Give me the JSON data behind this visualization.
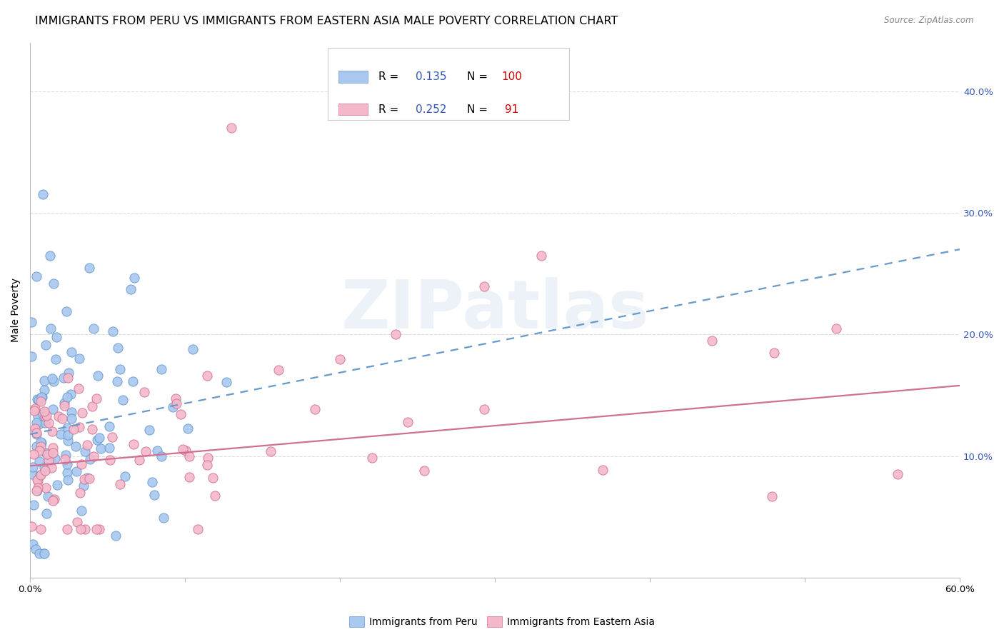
{
  "title": "IMMIGRANTS FROM PERU VS IMMIGRANTS FROM EASTERN ASIA MALE POVERTY CORRELATION CHART",
  "source": "Source: ZipAtlas.com",
  "ylabel": "Male Poverty",
  "xlim": [
    0.0,
    0.6
  ],
  "ylim": [
    0.0,
    0.44
  ],
  "xtick_positions": [
    0.0,
    0.1,
    0.2,
    0.3,
    0.4,
    0.5,
    0.6
  ],
  "xtick_labels": [
    "0.0%",
    "",
    "",
    "",
    "",
    "",
    "60.0%"
  ],
  "ytick_positions": [
    0.0,
    0.1,
    0.2,
    0.3,
    0.4
  ],
  "ytick_labels_right": [
    "",
    "10.0%",
    "20.0%",
    "30.0%",
    "40.0%"
  ],
  "series": [
    {
      "name": "Immigrants from Peru",
      "color": "#a8c8f0",
      "edge_color": "#6699cc",
      "R": 0.135,
      "N": 100,
      "line_x": [
        0.0,
        0.6
      ],
      "line_y": [
        0.118,
        0.27
      ],
      "line_color": "#6699cc",
      "line_style": "--"
    },
    {
      "name": "Immigrants from Eastern Asia",
      "color": "#f5b8cb",
      "edge_color": "#d07090",
      "R": 0.252,
      "N": 91,
      "line_x": [
        0.0,
        0.6
      ],
      "line_y": [
        0.092,
        0.158
      ],
      "line_color": "#d07090",
      "line_style": "-"
    }
  ],
  "legend_R_color": "#3355bb",
  "legend_N_color": "#cc0000",
  "watermark_text": "ZIPatlas",
  "watermark_color": "#adc8e8",
  "watermark_alpha": 0.22,
  "background_color": "#ffffff",
  "grid_color": "#dddddd",
  "title_fontsize": 11.5,
  "axis_fontsize": 10,
  "tick_fontsize": 9.5,
  "legend_fontsize": 11,
  "seed": 12345
}
